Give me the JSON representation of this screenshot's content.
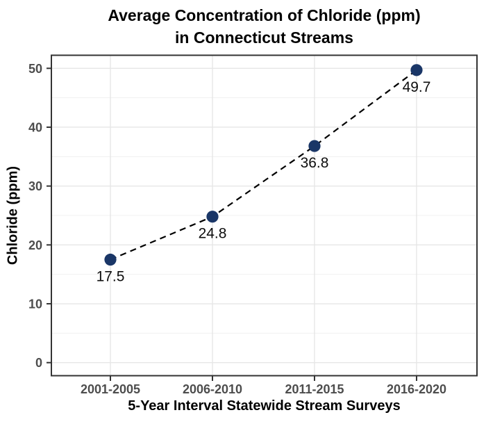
{
  "chart_data": {
    "type": "line",
    "title_line1": "Average Concentration of Chloride (ppm)",
    "title_line2": "in Connecticut Streams",
    "xlabel": "5-Year Interval Statewide Stream Surveys",
    "ylabel": "Chloride (ppm)",
    "categories": [
      "2001-2005",
      "2006-2010",
      "2011-2015",
      "2016-2020"
    ],
    "values": [
      17.5,
      24.8,
      36.8,
      49.7
    ],
    "value_labels": [
      "17.5",
      "24.8",
      "36.8",
      "49.7"
    ],
    "y_ticks": [
      0,
      10,
      20,
      30,
      40,
      50
    ],
    "y_minor_ticks": [
      5,
      15,
      25,
      35,
      45
    ],
    "ylim": [
      0,
      50
    ],
    "line_style": "dashed",
    "marker": "filled-circle",
    "legend": "none",
    "grid": "major-h, major-v, minor-h",
    "colors": {
      "point_fill": "#1a3667",
      "line": "#000000",
      "grid_major": "#e6e6e6",
      "grid_minor": "#f0f0f0",
      "panel_border": "#333333",
      "tick_mark": "#333333",
      "tick_label": "#4d4d4d",
      "axis_title": "#000000",
      "title": "#000000",
      "value_label": "#0d0d0d",
      "background": "#ffffff"
    }
  }
}
